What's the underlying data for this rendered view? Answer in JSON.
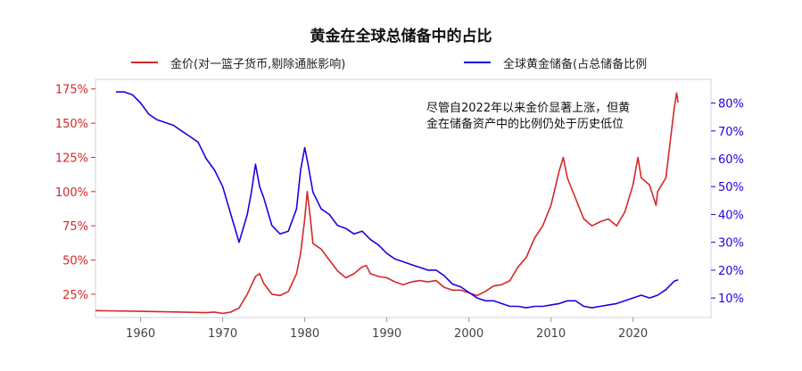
{
  "chart_data": {
    "type": "line",
    "title": "黄金在全球总储备中的占比",
    "annotation_lines": [
      "尽管自2022年以来金价显著上涨，但黄",
      "金在储备资产中的比例仍处于历史低位"
    ],
    "x_ticks": [
      1960,
      1970,
      1980,
      1990,
      2000,
      2010,
      2020
    ],
    "xlim": [
      1954.5,
      2029.5
    ],
    "left_axis": {
      "ylim": [
        0.08,
        1.82
      ],
      "ticks": [
        0.25,
        0.5,
        0.75,
        1.0,
        1.25,
        1.5,
        1.75
      ],
      "tick_labels": [
        "25%",
        "50%",
        "75%",
        "100%",
        "125%",
        "150%",
        "175%"
      ],
      "color": "#d62728"
    },
    "right_axis": {
      "ylim": [
        0.03,
        0.885
      ],
      "ticks": [
        0.1,
        0.2,
        0.3,
        0.4,
        0.5,
        0.6,
        0.7,
        0.8
      ],
      "tick_labels": [
        "10%",
        "20%",
        "30%",
        "40%",
        "50%",
        "60%",
        "70%",
        "80%"
      ],
      "color": "#1f00e0"
    },
    "series": [
      {
        "name": "金价(对一篮子货币,剔除通胀影响)",
        "axis": "left",
        "color": "#d62728",
        "x": [
          1954.5,
          1960,
          1965,
          1968,
          1969,
          1970,
          1971,
          1972,
          1973,
          1974,
          1974.5,
          1975,
          1976,
          1977,
          1978,
          1979,
          1979.5,
          1980,
          1980.3,
          1980.7,
          1981,
          1982,
          1983,
          1984,
          1985,
          1986,
          1987,
          1987.5,
          1988,
          1989,
          1990,
          1991,
          1992,
          1993,
          1994,
          1995,
          1996,
          1997,
          1998,
          1999,
          2000,
          2001,
          2002,
          2003,
          2004,
          2005,
          2006,
          2007,
          2008,
          2009,
          2010,
          2011,
          2011.5,
          2012,
          2013,
          2014,
          2015,
          2016,
          2017,
          2018,
          2019,
          2020,
          2020.6,
          2021,
          2022,
          2022.8,
          2023,
          2024,
          2024.5,
          2025,
          2025.3,
          2025.5
        ],
        "y": [
          0.13,
          0.125,
          0.12,
          0.115,
          0.12,
          0.11,
          0.12,
          0.15,
          0.25,
          0.38,
          0.4,
          0.33,
          0.25,
          0.24,
          0.27,
          0.4,
          0.55,
          0.8,
          1.0,
          0.8,
          0.62,
          0.58,
          0.5,
          0.42,
          0.37,
          0.4,
          0.45,
          0.46,
          0.4,
          0.38,
          0.37,
          0.34,
          0.32,
          0.34,
          0.35,
          0.34,
          0.35,
          0.3,
          0.28,
          0.28,
          0.26,
          0.24,
          0.27,
          0.31,
          0.32,
          0.35,
          0.45,
          0.52,
          0.66,
          0.75,
          0.9,
          1.15,
          1.25,
          1.1,
          0.95,
          0.8,
          0.75,
          0.78,
          0.8,
          0.75,
          0.85,
          1.05,
          1.25,
          1.1,
          1.05,
          0.9,
          1.0,
          1.1,
          1.35,
          1.6,
          1.72,
          1.65
        ]
      },
      {
        "name": "全球黄金储备(占总储备比例",
        "axis": "right",
        "color": "#1f00e0",
        "x": [
          1957,
          1958,
          1959,
          1960,
          1961,
          1962,
          1963,
          1964,
          1965,
          1966,
          1967,
          1968,
          1969,
          1970,
          1971,
          1972,
          1973,
          1973.5,
          1974,
          1974.5,
          1975,
          1976,
          1977,
          1978,
          1979,
          1979.5,
          1980,
          1980.4,
          1981,
          1982,
          1983,
          1984,
          1985,
          1986,
          1987,
          1988,
          1989,
          1990,
          1991,
          1992,
          1993,
          1994,
          1995,
          1996,
          1997,
          1998,
          1999,
          2000,
          2001,
          2002,
          2003,
          2004,
          2005,
          2006,
          2007,
          2008,
          2009,
          2010,
          2011,
          2012,
          2013,
          2014,
          2015,
          2016,
          2017,
          2018,
          2019,
          2020,
          2021,
          2022,
          2023,
          2024,
          2025,
          2025.5
        ],
        "y": [
          0.84,
          0.84,
          0.83,
          0.8,
          0.76,
          0.74,
          0.73,
          0.72,
          0.7,
          0.68,
          0.66,
          0.6,
          0.56,
          0.5,
          0.4,
          0.3,
          0.4,
          0.48,
          0.58,
          0.5,
          0.46,
          0.36,
          0.33,
          0.34,
          0.42,
          0.56,
          0.64,
          0.58,
          0.48,
          0.42,
          0.4,
          0.36,
          0.35,
          0.33,
          0.34,
          0.31,
          0.29,
          0.26,
          0.24,
          0.23,
          0.22,
          0.21,
          0.2,
          0.2,
          0.18,
          0.15,
          0.14,
          0.12,
          0.1,
          0.09,
          0.09,
          0.08,
          0.07,
          0.07,
          0.065,
          0.07,
          0.07,
          0.075,
          0.08,
          0.09,
          0.09,
          0.07,
          0.065,
          0.07,
          0.075,
          0.08,
          0.09,
          0.1,
          0.11,
          0.1,
          0.11,
          0.13,
          0.16,
          0.165
        ]
      }
    ]
  }
}
